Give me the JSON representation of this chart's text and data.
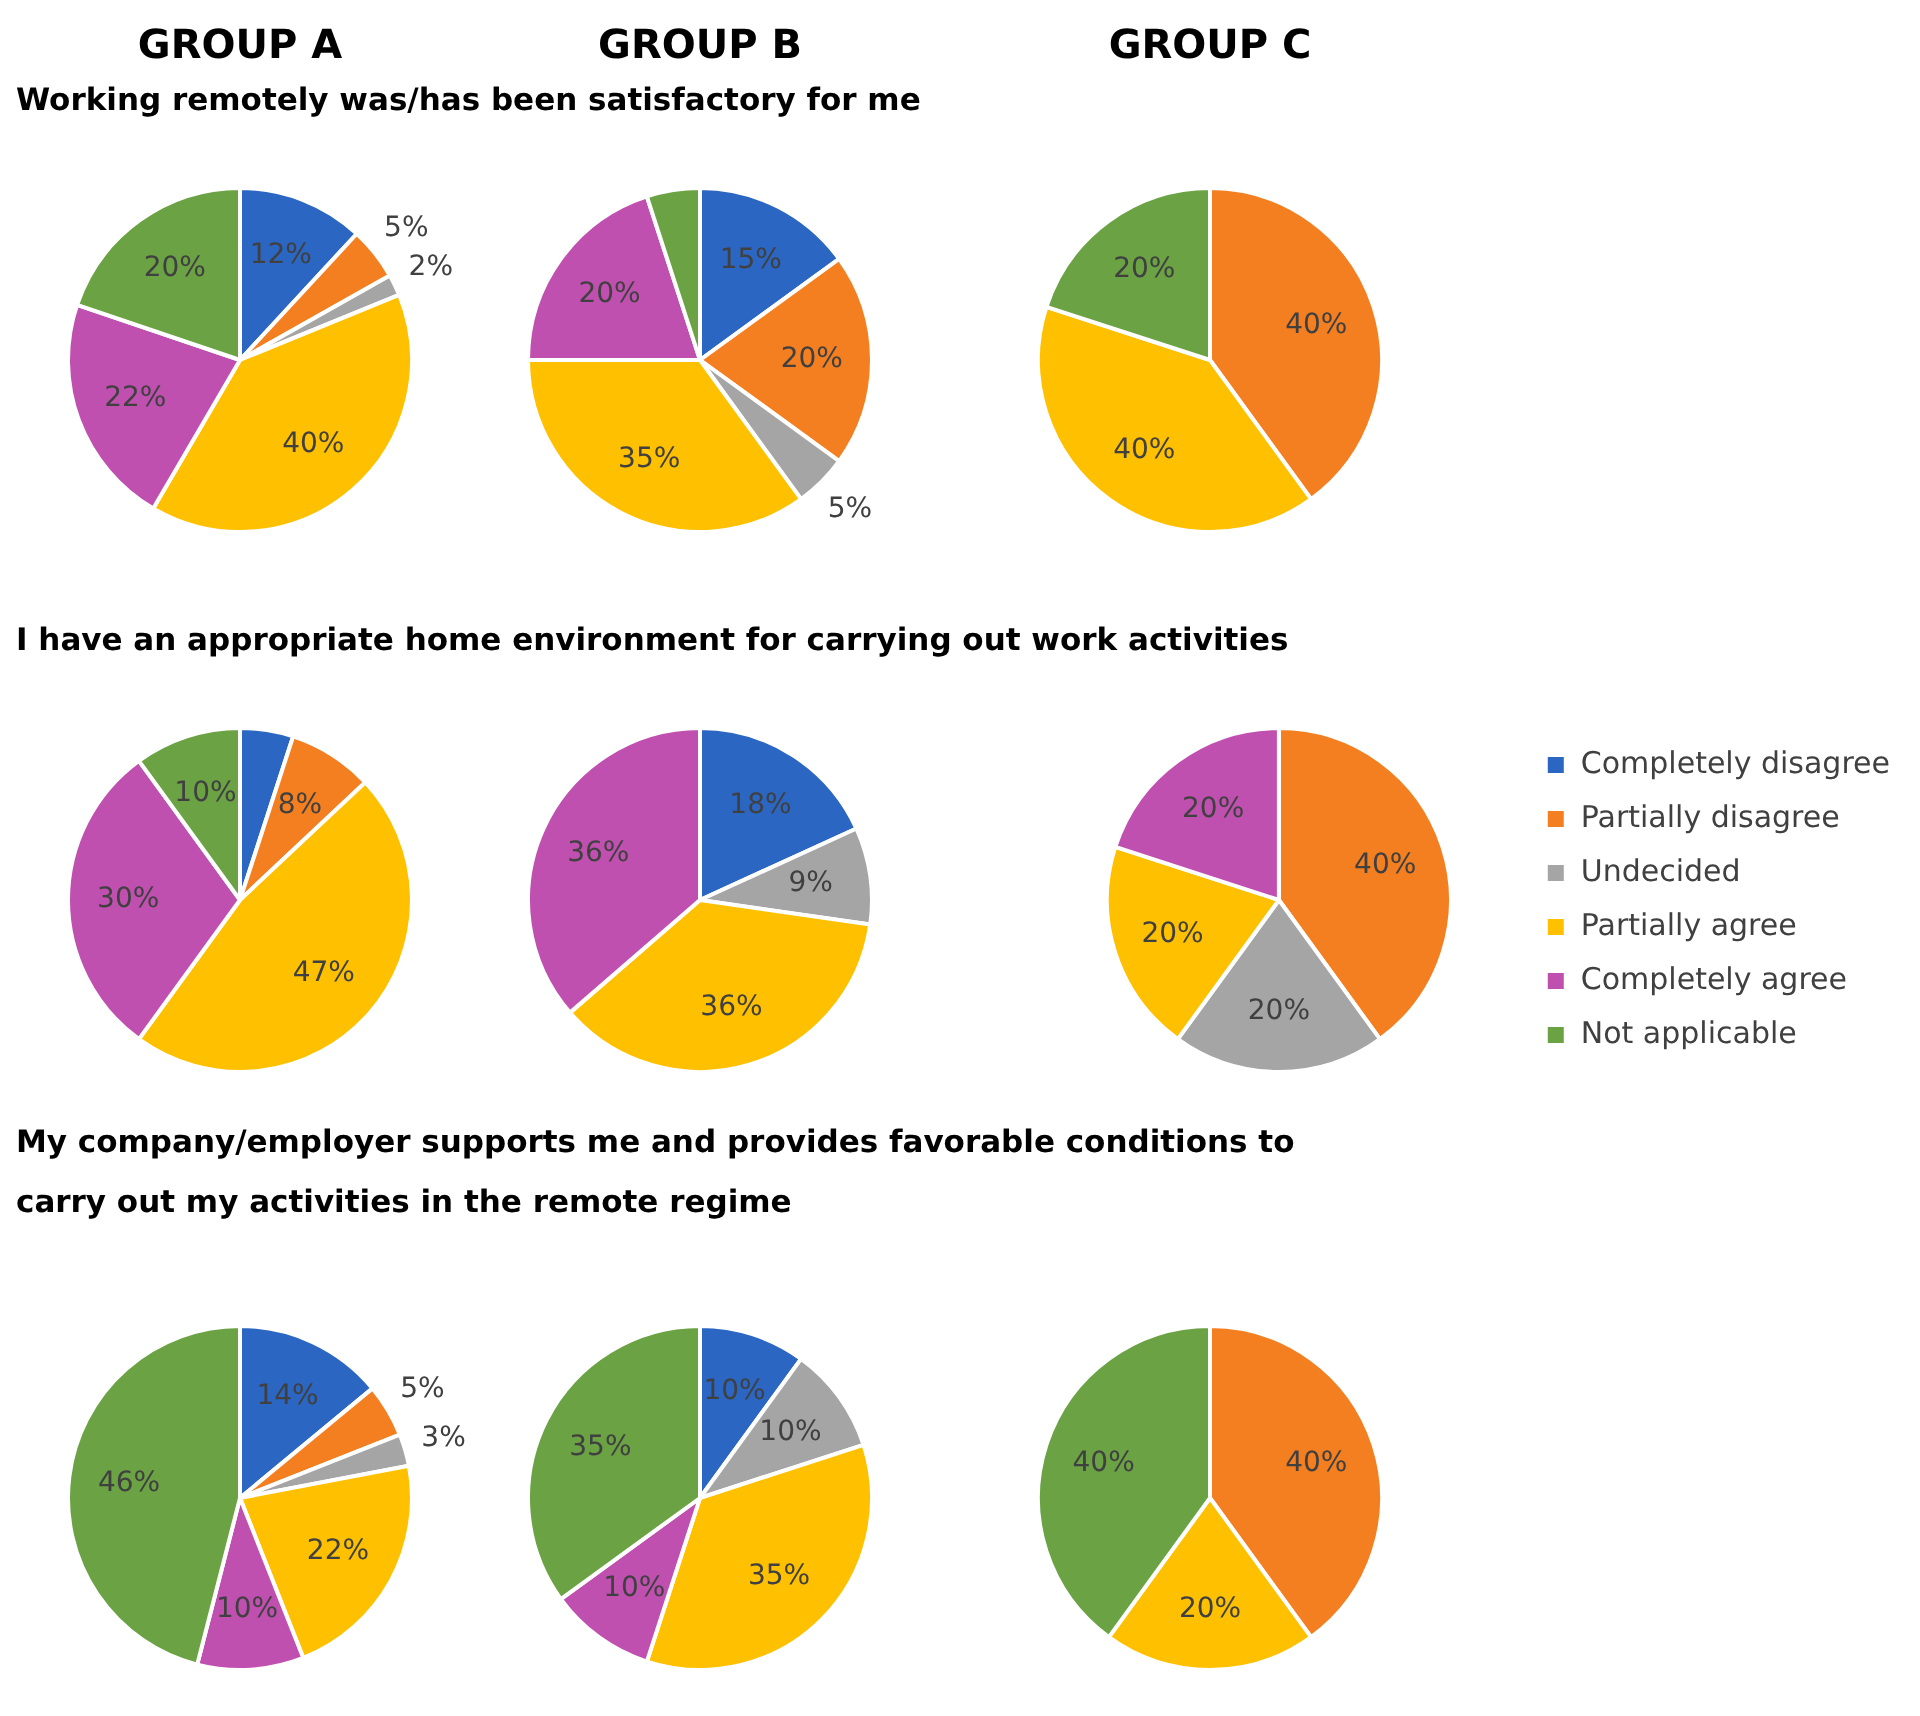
{
  "chart_data": [
    {
      "type": "pie",
      "title": "GROUP A",
      "subtitle": "Working remotely was/has been satisfactory for me",
      "categories": [
        null,
        null,
        null,
        null,
        null,
        null
      ],
      "values": [
        12,
        5,
        2,
        40,
        22,
        20
      ],
      "colors": [
        "#2a66c2",
        "#f47f20",
        "#a5a5a5",
        "#ffc000",
        "#c050b0",
        "#6aa244"
      ],
      "value_labels": [
        "12%",
        "5%",
        "2%",
        "40%",
        "22%",
        "20%"
      ]
    },
    {
      "type": "pie",
      "title": "GROUP B",
      "categories": [
        null,
        null,
        null,
        null,
        null,
        null
      ],
      "values": [
        15,
        20,
        5,
        35,
        20,
        5
      ],
      "colors": [
        "#2a66c2",
        "#f47f20",
        "#a5a5a5",
        "#ffc000",
        "#c050b0",
        "#6aa244"
      ],
      "value_labels": [
        "15%",
        "20%",
        "5%",
        "35%",
        "20%",
        null
      ]
    },
    {
      "type": "pie",
      "title": "GROUP C",
      "categories": [
        null,
        null,
        null,
        null,
        null,
        null
      ],
      "values": [
        null,
        40,
        null,
        40,
        null,
        20
      ],
      "colors": [
        "#2a66c2",
        "#f47f20",
        "#a5a5a5",
        "#ffc000",
        "#c050b0",
        "#6aa244"
      ],
      "value_labels": [
        null,
        "40%",
        null,
        "40%",
        null,
        "20%"
      ]
    },
    {
      "type": "pie",
      "subtitle": "I have an appropriate home environment for carrying out work activities",
      "categories": [
        null,
        null,
        null,
        null,
        null,
        null
      ],
      "values": [
        5,
        8,
        null,
        47,
        30,
        10
      ],
      "colors": [
        "#2a66c2",
        "#f47f20",
        "#a5a5a5",
        "#ffc000",
        "#c050b0",
        "#6aa244"
      ],
      "value_labels": [
        null,
        "8%",
        null,
        "47%",
        "30%",
        "10%"
      ]
    },
    {
      "type": "pie",
      "categories": [
        null,
        null,
        null,
        null,
        null,
        null
      ],
      "values": [
        18,
        null,
        9,
        36,
        36,
        null
      ],
      "colors": [
        "#2a66c2",
        "#f47f20",
        "#a5a5a5",
        "#ffc000",
        "#c050b0",
        "#6aa244"
      ],
      "value_labels": [
        "18%",
        null,
        "9%",
        "36%",
        "36%",
        null
      ]
    },
    {
      "type": "pie",
      "legend": "right",
      "categories": [
        "Completely disagree",
        "Partially disagree",
        "Undecided",
        "Partially agree",
        "Completely agree",
        "Not applicable"
      ],
      "values": [
        null,
        40,
        20,
        20,
        20,
        null
      ],
      "colors": [
        "#2a66c2",
        "#f47f20",
        "#a5a5a5",
        "#ffc000",
        "#c050b0",
        "#6aa244"
      ],
      "value_labels": [
        null,
        "40%",
        "20%",
        "20%",
        "20%",
        null
      ]
    },
    {
      "type": "pie",
      "subtitle": "My company/employer supports me and provides favorable conditions to carry out my activities in the remote regime",
      "categories": [
        null,
        null,
        null,
        null,
        null,
        null
      ],
      "values": [
        14,
        5,
        3,
        22,
        10,
        46
      ],
      "colors": [
        "#2a66c2",
        "#f47f20",
        "#a5a5a5",
        "#ffc000",
        "#c050b0",
        "#6aa244"
      ],
      "value_labels": [
        "14%",
        "5%",
        "3%",
        "22%",
        "10%",
        "46%"
      ]
    },
    {
      "type": "pie",
      "categories": [
        null,
        null,
        null,
        null,
        null,
        null
      ],
      "values": [
        10,
        null,
        10,
        35,
        10,
        35
      ],
      "colors": [
        "#2a66c2",
        "#f47f20",
        "#a5a5a5",
        "#ffc000",
        "#c050b0",
        "#6aa244"
      ],
      "value_labels": [
        "10%",
        null,
        "10%",
        "35%",
        "10%",
        "35%"
      ]
    },
    {
      "type": "pie",
      "categories": [
        null,
        null,
        null,
        null,
        null,
        null
      ],
      "values": [
        null,
        40,
        null,
        20,
        null,
        40
      ],
      "colors": [
        "#2a66c2",
        "#f47f20",
        "#a5a5a5",
        "#ffc000",
        "#c050b0",
        "#6aa244"
      ],
      "value_labels": [
        null,
        "40%",
        null,
        "20%",
        null,
        "40%"
      ]
    }
  ]
}
